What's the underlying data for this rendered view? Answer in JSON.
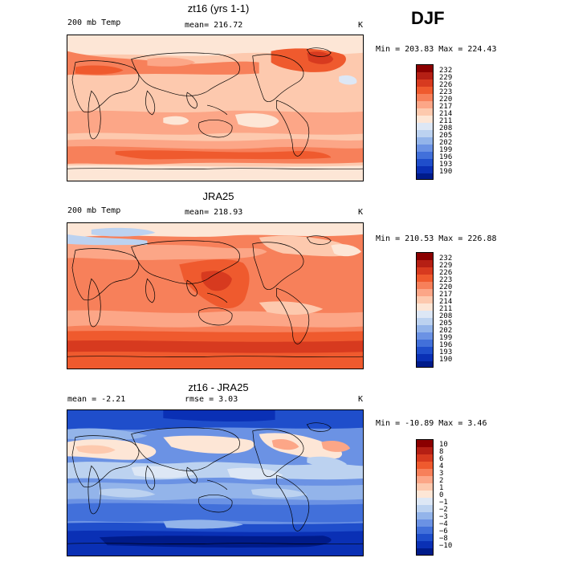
{
  "season": "DJF",
  "units": "K",
  "panels": [
    {
      "title": "zt16 (yrs 1-1)",
      "left_label": "200 mb Temp",
      "center_label": "mean= 216.72",
      "stats": "Min = 203.83 Max = 224.43",
      "colorbar_levels": [
        "232",
        "229",
        "226",
        "223",
        "220",
        "217",
        "214",
        "211",
        "208",
        "205",
        "202",
        "199",
        "196",
        "193",
        "190"
      ]
    },
    {
      "title": "JRA25",
      "left_label": "200 mb Temp",
      "center_label": "mean= 218.93",
      "stats": "Min = 210.53 Max = 226.88",
      "colorbar_levels": [
        "232",
        "229",
        "226",
        "223",
        "220",
        "217",
        "214",
        "211",
        "208",
        "205",
        "202",
        "199",
        "196",
        "193",
        "190"
      ]
    },
    {
      "title": "zt16 - JRA25",
      "left_label": "mean =   -2.21",
      "center_label": "rmse =   3.03",
      "stats": "Min = -10.89 Max =   3.46",
      "colorbar_levels": [
        "10",
        "8",
        "6",
        "4",
        "3",
        "2",
        "1",
        "0",
        "−1",
        "−2",
        "−3",
        "−4",
        "−6",
        "−8",
        "−10"
      ]
    }
  ],
  "colors": {
    "scale": [
      "#8b0000",
      "#b51f14",
      "#d73a1f",
      "#ef5a2e",
      "#f7805a",
      "#fca687",
      "#fdc9ae",
      "#fde6d6",
      "#dde7f5",
      "#bcd2f0",
      "#93b4ea",
      "#6b92e4",
      "#4270da",
      "#1f4ecb",
      "#0a30b5",
      "#001b8a"
    ]
  }
}
